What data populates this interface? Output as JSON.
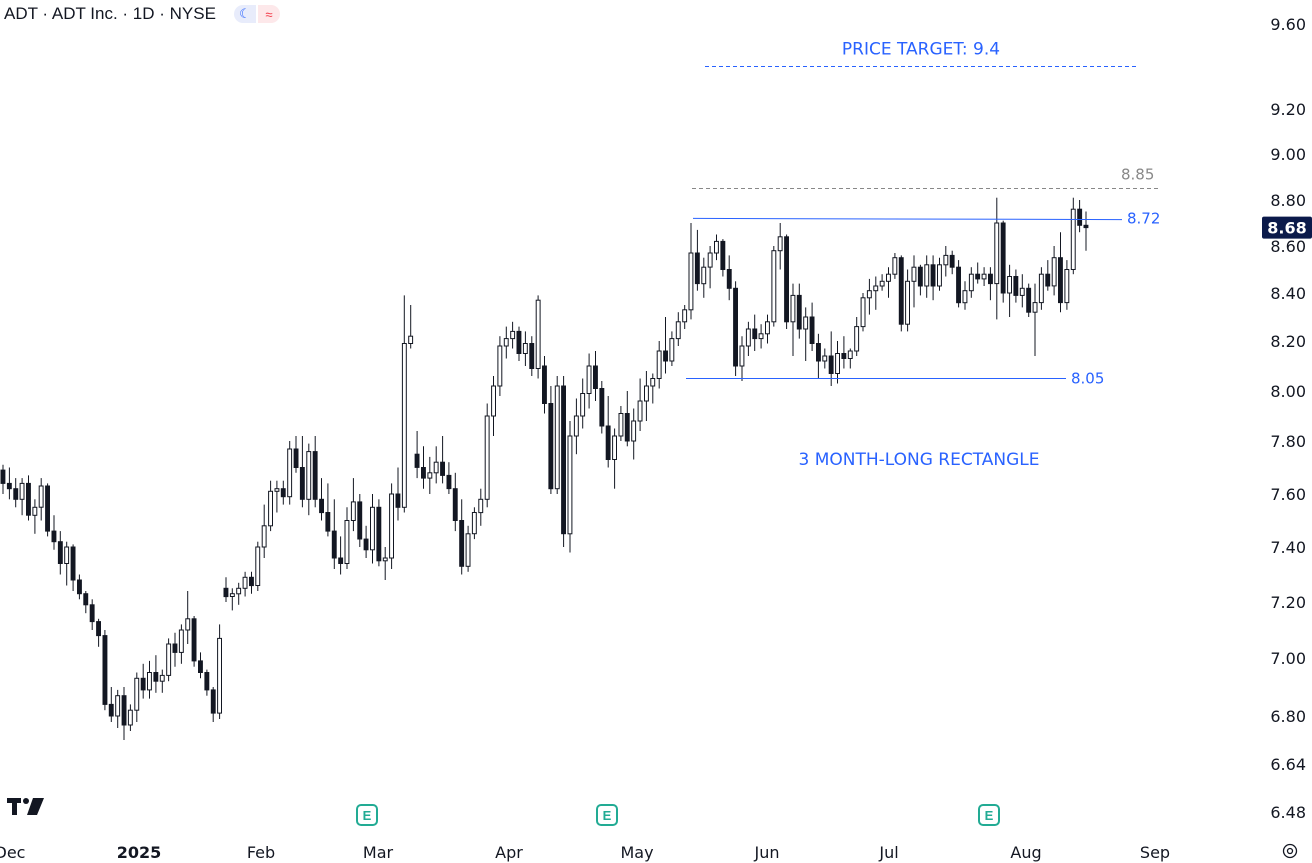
{
  "header": {
    "title": "ADT · ADT Inc. · 1D · NYSE"
  },
  "icons": {
    "theme": "moon-icon",
    "indicator": "wave-icon",
    "logo": "tradingview-logo-icon",
    "settings": "gear-icon",
    "earnings": "earnings-e-icon"
  },
  "colors": {
    "annotation": "#2962ff",
    "resistance_dash": "#888888",
    "last_price_bg": "#0b1a4a",
    "earnings": "#22ab94"
  },
  "chart_data": {
    "type": "candlestick",
    "y_axis": {
      "ticks": [
        "9.60",
        "9.20",
        "9.00",
        "8.80",
        "8.60",
        "8.40",
        "8.20",
        "8.00",
        "7.80",
        "7.60",
        "7.40",
        "7.20",
        "7.00",
        "6.80",
        "6.64",
        "6.48"
      ],
      "range": [
        6.44,
        9.66
      ]
    },
    "x_axis": {
      "labels": [
        "Dec",
        "2025",
        "Feb",
        "Mar",
        "Apr",
        "May",
        "Jun",
        "Jul",
        "Aug",
        "Sep"
      ]
    },
    "last_price": "8.68",
    "annotations": {
      "price_target_label": "PRICE TARGET: 9.4",
      "price_target": 9.4,
      "resistance_dashed_label": "8.85",
      "resistance_dashed": 8.85,
      "rectangle_top_label": "8.72",
      "rectangle_top": 8.72,
      "rectangle_bottom_label": "8.05",
      "rectangle_bottom": 8.05,
      "pattern_label": "3 MONTH-LONG RECTANGLE"
    },
    "earnings_markers": [
      "E",
      "E",
      "E"
    ],
    "ohlc": [
      [
        7.69,
        7.71,
        7.6,
        7.64
      ],
      [
        7.64,
        7.7,
        7.58,
        7.62
      ],
      [
        7.62,
        7.66,
        7.55,
        7.58
      ],
      [
        7.58,
        7.66,
        7.52,
        7.64
      ],
      [
        7.64,
        7.67,
        7.5,
        7.52
      ],
      [
        7.52,
        7.58,
        7.45,
        7.55
      ],
      [
        7.55,
        7.66,
        7.5,
        7.63
      ],
      [
        7.63,
        7.64,
        7.44,
        7.46
      ],
      [
        7.46,
        7.52,
        7.39,
        7.42
      ],
      [
        7.42,
        7.46,
        7.3,
        7.34
      ],
      [
        7.34,
        7.42,
        7.26,
        7.4
      ],
      [
        7.4,
        7.41,
        7.24,
        7.28
      ],
      [
        7.28,
        7.3,
        7.21,
        7.23
      ],
      [
        7.23,
        7.24,
        7.16,
        7.19
      ],
      [
        7.19,
        7.21,
        7.1,
        7.13
      ],
      [
        7.13,
        7.14,
        7.04,
        7.08
      ],
      [
        7.08,
        7.1,
        6.82,
        6.84
      ],
      [
        6.84,
        6.9,
        6.78,
        6.8
      ],
      [
        6.8,
        6.89,
        6.76,
        6.87
      ],
      [
        6.87,
        6.9,
        6.72,
        6.77
      ],
      [
        6.77,
        6.84,
        6.75,
        6.82
      ],
      [
        6.82,
        6.95,
        6.78,
        6.93
      ],
      [
        6.93,
        6.98,
        6.86,
        6.89
      ],
      [
        6.89,
        6.99,
        6.86,
        6.95
      ],
      [
        6.95,
        7.01,
        6.88,
        6.92
      ],
      [
        6.92,
        6.96,
        6.88,
        6.94
      ],
      [
        6.94,
        7.07,
        6.92,
        7.05
      ],
      [
        7.05,
        7.09,
        6.97,
        7.02
      ],
      [
        7.02,
        7.12,
        6.98,
        7.1
      ],
      [
        7.1,
        7.24,
        7.05,
        7.14
      ],
      [
        7.14,
        7.15,
        6.97,
        6.99
      ],
      [
        6.99,
        7.02,
        6.93,
        6.95
      ],
      [
        6.95,
        6.96,
        6.87,
        6.89
      ],
      [
        6.89,
        6.9,
        6.78,
        6.81
      ],
      [
        6.81,
        7.12,
        6.79,
        7.07
      ],
      [
        7.25,
        7.29,
        7.2,
        7.22
      ],
      [
        7.22,
        7.25,
        7.17,
        7.23
      ],
      [
        7.23,
        7.27,
        7.19,
        7.25
      ],
      [
        7.25,
        7.31,
        7.22,
        7.29
      ],
      [
        7.29,
        7.31,
        7.23,
        7.26
      ],
      [
        7.26,
        7.42,
        7.24,
        7.4
      ],
      [
        7.4,
        7.56,
        7.36,
        7.48
      ],
      [
        7.48,
        7.65,
        7.46,
        7.61
      ],
      [
        7.61,
        7.65,
        7.53,
        7.62
      ],
      [
        7.62,
        7.65,
        7.56,
        7.59
      ],
      [
        7.59,
        7.8,
        7.56,
        7.77
      ],
      [
        7.77,
        7.82,
        7.68,
        7.7
      ],
      [
        7.7,
        7.82,
        7.55,
        7.58
      ],
      [
        7.58,
        7.79,
        7.52,
        7.76
      ],
      [
        7.76,
        7.82,
        7.55,
        7.58
      ],
      [
        7.58,
        7.66,
        7.5,
        7.53
      ],
      [
        7.53,
        7.64,
        7.44,
        7.46
      ],
      [
        7.46,
        7.58,
        7.32,
        7.36
      ],
      [
        7.36,
        7.44,
        7.3,
        7.34
      ],
      [
        7.34,
        7.55,
        7.32,
        7.5
      ],
      [
        7.5,
        7.66,
        7.46,
        7.57
      ],
      [
        7.57,
        7.6,
        7.4,
        7.43
      ],
      [
        7.43,
        7.48,
        7.36,
        7.39
      ],
      [
        7.39,
        7.6,
        7.34,
        7.55
      ],
      [
        7.55,
        7.58,
        7.33,
        7.35
      ],
      [
        7.35,
        7.4,
        7.28,
        7.36
      ],
      [
        7.36,
        7.64,
        7.32,
        7.6
      ],
      [
        7.6,
        7.7,
        7.5,
        7.55
      ],
      [
        7.55,
        8.39,
        7.53,
        8.19
      ],
      [
        8.19,
        8.35,
        8.17,
        8.22
      ],
      [
        7.75,
        7.84,
        7.66,
        7.7
      ],
      [
        7.7,
        7.78,
        7.62,
        7.66
      ],
      [
        7.66,
        7.74,
        7.6,
        7.68
      ],
      [
        7.68,
        7.78,
        7.64,
        7.72
      ],
      [
        7.72,
        7.82,
        7.64,
        7.67
      ],
      [
        7.67,
        7.72,
        7.6,
        7.62
      ],
      [
        7.62,
        7.68,
        7.46,
        7.5
      ],
      [
        7.5,
        7.58,
        7.3,
        7.33
      ],
      [
        7.33,
        7.48,
        7.31,
        7.45
      ],
      [
        7.45,
        7.55,
        7.43,
        7.53
      ],
      [
        7.53,
        7.62,
        7.48,
        7.58
      ],
      [
        7.58,
        7.95,
        7.55,
        7.9
      ],
      [
        7.9,
        8.06,
        7.82,
        8.02
      ],
      [
        8.02,
        8.22,
        7.98,
        8.18
      ],
      [
        8.18,
        8.26,
        8.13,
        8.21
      ],
      [
        8.21,
        8.28,
        8.17,
        8.24
      ],
      [
        8.24,
        8.26,
        8.12,
        8.15
      ],
      [
        8.15,
        8.24,
        8.1,
        8.19
      ],
      [
        8.19,
        8.22,
        8.06,
        8.09
      ],
      [
        8.09,
        8.39,
        8.05,
        8.37
      ],
      [
        8.1,
        8.14,
        7.91,
        7.95
      ],
      [
        7.95,
        8.02,
        7.6,
        7.62
      ],
      [
        7.62,
        8.06,
        7.6,
        8.02
      ],
      [
        8.02,
        8.06,
        7.4,
        7.45
      ],
      [
        7.45,
        7.88,
        7.38,
        7.82
      ],
      [
        7.82,
        7.97,
        7.75,
        7.9
      ],
      [
        7.9,
        8.05,
        7.85,
        7.99
      ],
      [
        7.99,
        8.15,
        7.93,
        8.1
      ],
      [
        8.1,
        8.16,
        7.96,
        8.01
      ],
      [
        8.01,
        8.04,
        7.83,
        7.86
      ],
      [
        7.86,
        7.98,
        7.7,
        7.73
      ],
      [
        7.73,
        7.85,
        7.62,
        7.82
      ],
      [
        7.82,
        7.94,
        7.8,
        7.91
      ],
      [
        7.91,
        8.0,
        7.78,
        7.8
      ],
      [
        7.8,
        7.93,
        7.73,
        7.88
      ],
      [
        7.88,
        8.05,
        7.84,
        7.96
      ],
      [
        7.96,
        8.08,
        7.88,
        8.02
      ],
      [
        8.02,
        8.07,
        7.95,
        8.05
      ],
      [
        8.05,
        8.2,
        8.01,
        8.16
      ],
      [
        8.16,
        8.3,
        8.07,
        8.12
      ],
      [
        8.12,
        8.24,
        8.1,
        8.21
      ],
      [
        8.21,
        8.32,
        8.18,
        8.28
      ],
      [
        8.28,
        8.35,
        8.25,
        8.33
      ],
      [
        8.33,
        8.7,
        8.29,
        8.57
      ],
      [
        8.57,
        8.67,
        8.41,
        8.44
      ],
      [
        8.44,
        8.55,
        8.38,
        8.51
      ],
      [
        8.51,
        8.6,
        8.42,
        8.57
      ],
      [
        8.57,
        8.65,
        8.54,
        8.62
      ],
      [
        8.62,
        8.63,
        8.47,
        8.5
      ],
      [
        8.5,
        8.56,
        8.37,
        8.42
      ],
      [
        8.42,
        8.45,
        8.06,
        8.1
      ],
      [
        8.1,
        8.22,
        8.04,
        8.18
      ],
      [
        8.18,
        8.28,
        8.14,
        8.25
      ],
      [
        8.25,
        8.31,
        8.16,
        8.21
      ],
      [
        8.21,
        8.27,
        8.17,
        8.23
      ],
      [
        8.23,
        8.31,
        8.19,
        8.28
      ],
      [
        8.28,
        8.6,
        8.26,
        8.58
      ],
      [
        8.58,
        8.7,
        8.5,
        8.64
      ],
      [
        8.64,
        8.65,
        8.25,
        8.28
      ],
      [
        8.28,
        8.44,
        8.14,
        8.39
      ],
      [
        8.39,
        8.44,
        8.21,
        8.25
      ],
      [
        8.25,
        8.34,
        8.12,
        8.3
      ],
      [
        8.3,
        8.36,
        8.16,
        8.19
      ],
      [
        8.19,
        8.23,
        8.05,
        8.12
      ],
      [
        8.12,
        8.17,
        8.09,
        8.14
      ],
      [
        8.14,
        8.24,
        8.02,
        8.07
      ],
      [
        8.07,
        8.2,
        8.03,
        8.15
      ],
      [
        8.15,
        8.22,
        8.09,
        8.13
      ],
      [
        8.13,
        8.17,
        8.09,
        8.16
      ],
      [
        8.16,
        8.3,
        8.14,
        8.26
      ],
      [
        8.26,
        8.4,
        8.24,
        8.38
      ],
      [
        8.38,
        8.46,
        8.31,
        8.41
      ],
      [
        8.41,
        8.47,
        8.33,
        8.43
      ],
      [
        8.43,
        8.48,
        8.41,
        8.45
      ],
      [
        8.45,
        8.51,
        8.38,
        8.48
      ],
      [
        8.48,
        8.57,
        8.46,
        8.55
      ],
      [
        8.55,
        8.56,
        8.24,
        8.27
      ],
      [
        8.27,
        8.5,
        8.24,
        8.45
      ],
      [
        8.45,
        8.56,
        8.34,
        8.51
      ],
      [
        8.51,
        8.52,
        8.39,
        8.43
      ],
      [
        8.43,
        8.56,
        8.38,
        8.52
      ],
      [
        8.52,
        8.56,
        8.37,
        8.43
      ],
      [
        8.43,
        8.55,
        8.41,
        8.52
      ],
      [
        8.52,
        8.6,
        8.47,
        8.56
      ],
      [
        8.56,
        8.58,
        8.48,
        8.51
      ],
      [
        8.51,
        8.54,
        8.34,
        8.36
      ],
      [
        8.36,
        8.45,
        8.33,
        8.41
      ],
      [
        8.41,
        8.51,
        8.38,
        8.48
      ],
      [
        8.48,
        8.53,
        8.44,
        8.46
      ],
      [
        8.46,
        8.51,
        8.43,
        8.48
      ],
      [
        8.48,
        8.51,
        8.37,
        8.44
      ],
      [
        8.44,
        8.81,
        8.29,
        8.7
      ],
      [
        8.7,
        8.71,
        8.36,
        8.4
      ],
      [
        8.4,
        8.52,
        8.3,
        8.47
      ],
      [
        8.47,
        8.5,
        8.36,
        8.39
      ],
      [
        8.39,
        8.48,
        8.34,
        8.42
      ],
      [
        8.42,
        8.44,
        8.3,
        8.32
      ],
      [
        8.32,
        8.44,
        8.14,
        8.36
      ],
      [
        8.36,
        8.51,
        8.33,
        8.48
      ],
      [
        8.48,
        8.54,
        8.41,
        8.43
      ],
      [
        8.43,
        8.6,
        8.39,
        8.55
      ],
      [
        8.55,
        8.66,
        8.32,
        8.36
      ],
      [
        8.36,
        8.54,
        8.33,
        8.5
      ],
      [
        8.5,
        8.81,
        8.48,
        8.76
      ],
      [
        8.76,
        8.8,
        8.66,
        8.69
      ],
      [
        8.69,
        8.75,
        8.58,
        8.68
      ]
    ]
  }
}
